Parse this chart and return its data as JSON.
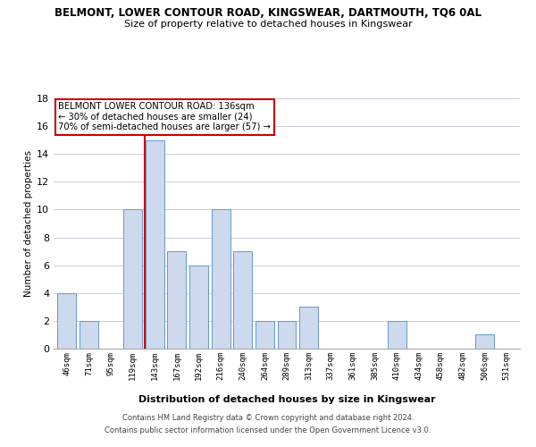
{
  "title": "BELMONT, LOWER CONTOUR ROAD, KINGSWEAR, DARTMOUTH, TQ6 0AL",
  "subtitle": "Size of property relative to detached houses in Kingswear",
  "xlabel": "Distribution of detached houses by size in Kingswear",
  "ylabel": "Number of detached properties",
  "bar_labels": [
    "46sqm",
    "71sqm",
    "95sqm",
    "119sqm",
    "143sqm",
    "167sqm",
    "192sqm",
    "216sqm",
    "240sqm",
    "264sqm",
    "289sqm",
    "313sqm",
    "337sqm",
    "361sqm",
    "385sqm",
    "410sqm",
    "434sqm",
    "458sqm",
    "482sqm",
    "506sqm",
    "531sqm"
  ],
  "bar_values": [
    4,
    2,
    0,
    10,
    15,
    7,
    6,
    10,
    7,
    2,
    2,
    3,
    0,
    0,
    0,
    2,
    0,
    0,
    0,
    1,
    0
  ],
  "bar_color": "#cdd9ed",
  "bar_edge_color": "#6699cc",
  "vline_color": "#cc0000",
  "ylim": [
    0,
    18
  ],
  "yticks": [
    0,
    2,
    4,
    6,
    8,
    10,
    12,
    14,
    16,
    18
  ],
  "annotation_title": "BELMONT LOWER CONTOUR ROAD: 136sqm",
  "annotation_line1": "← 30% of detached houses are smaller (24)",
  "annotation_line2": "70% of semi-detached houses are larger (57) →",
  "footer_line1": "Contains HM Land Registry data © Crown copyright and database right 2024.",
  "footer_line2": "Contains public sector information licensed under the Open Government Licence v3.0.",
  "background_color": "#ffffff",
  "grid_color": "#ccccdd"
}
